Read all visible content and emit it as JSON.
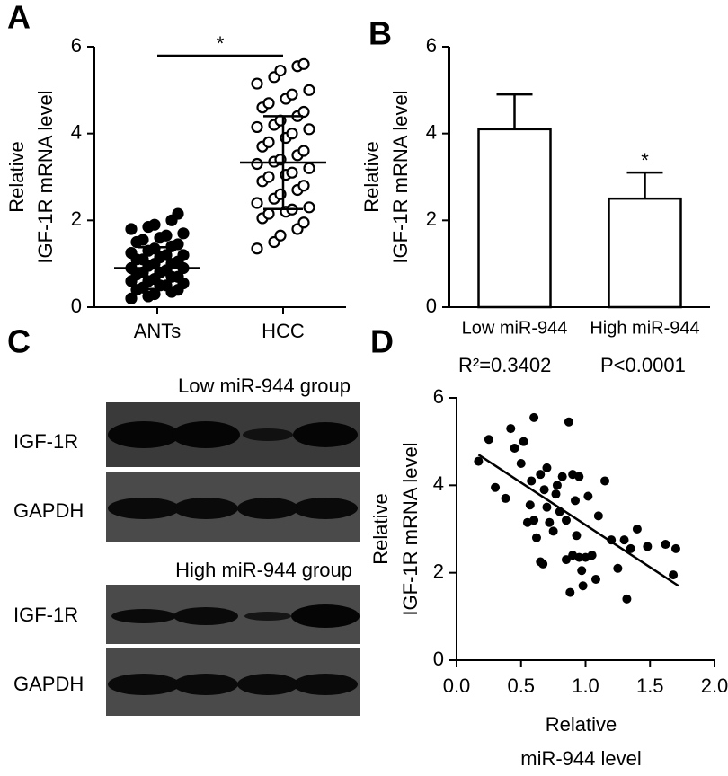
{
  "panel_labels": [
    "A",
    "B",
    "C",
    "D"
  ],
  "chart_data": [
    {
      "type": "dotplot",
      "ylabel": [
        "Relative",
        "IGF-1R mRNA level"
      ],
      "ylim": [
        0,
        6
      ],
      "yticks": [
        0,
        2,
        4,
        6
      ],
      "significance": "*",
      "groups": [
        {
          "name": "ANTs",
          "mean": 0.9,
          "sd": 0.48,
          "values": [
            0.2,
            0.25,
            0.3,
            0.35,
            0.4,
            0.4,
            0.45,
            0.5,
            0.5,
            0.55,
            0.6,
            0.6,
            0.65,
            0.7,
            0.7,
            0.75,
            0.8,
            0.8,
            0.85,
            0.9,
            0.9,
            0.95,
            1.0,
            1.0,
            1.05,
            1.1,
            1.1,
            1.15,
            1.2,
            1.2,
            1.25,
            1.3,
            1.35,
            1.4,
            1.45,
            1.5,
            1.55,
            1.6,
            1.65,
            1.7,
            1.8,
            1.85,
            1.9,
            2.0,
            2.15
          ]
        },
        {
          "name": "HCC",
          "mean": 3.33,
          "sd": 1.07,
          "values": [
            1.35,
            1.5,
            1.65,
            1.8,
            1.95,
            2.05,
            2.15,
            2.2,
            2.25,
            2.3,
            2.4,
            2.5,
            2.6,
            2.7,
            2.8,
            2.9,
            3.0,
            3.05,
            3.1,
            3.2,
            3.3,
            3.35,
            3.4,
            3.5,
            3.6,
            3.7,
            3.8,
            3.9,
            4.0,
            4.1,
            4.15,
            4.2,
            4.3,
            4.4,
            4.5,
            4.6,
            4.7,
            4.8,
            4.9,
            5.0,
            5.15,
            5.3,
            5.45,
            5.55,
            5.6
          ]
        }
      ]
    },
    {
      "type": "bar",
      "ylabel": [
        "Relative",
        "IGF-1R mRNA level"
      ],
      "ylim": [
        0,
        6
      ],
      "yticks": [
        0,
        2,
        4,
        6
      ],
      "categories": [
        "Low miR-944",
        "High miR-944"
      ],
      "values": [
        4.1,
        2.5
      ],
      "errors": [
        0.8,
        0.6
      ],
      "significance": "*"
    },
    {
      "type": "scatter",
      "ylabel": [
        "Relative",
        "IGF-1R mRNA level"
      ],
      "xlabel": [
        "Relative",
        "miR-944 level"
      ],
      "annotations": [
        "R²=0.3402",
        "P<0.0001"
      ],
      "xlim": [
        0,
        2
      ],
      "ylim": [
        0,
        6
      ],
      "xticks": [
        {
          "value": 0,
          "label": "0.0"
        },
        0.5,
        {
          "value": 1,
          "label": "1.0"
        },
        1.5,
        {
          "value": 2,
          "label": "2.0"
        }
      ],
      "yticks": [
        0,
        2,
        4,
        6
      ],
      "x": [
        0.17,
        0.25,
        0.3,
        0.38,
        0.42,
        0.45,
        0.5,
        0.52,
        0.55,
        0.57,
        0.58,
        0.6,
        0.6,
        0.62,
        0.65,
        0.65,
        0.67,
        0.68,
        0.7,
        0.7,
        0.72,
        0.75,
        0.77,
        0.78,
        0.8,
        0.82,
        0.85,
        0.85,
        0.87,
        0.88,
        0.9,
        0.9,
        0.92,
        0.93,
        0.95,
        0.95,
        0.97,
        0.98,
        1.0,
        1.02,
        1.05,
        1.08,
        1.1,
        1.15,
        1.2,
        1.25,
        1.3,
        1.32,
        1.35,
        1.4,
        1.48,
        1.62,
        1.68,
        1.7
      ],
      "y": [
        4.55,
        5.05,
        3.95,
        3.7,
        5.3,
        4.85,
        4.5,
        5.0,
        3.15,
        3.55,
        4.1,
        5.55,
        3.2,
        2.8,
        4.25,
        2.25,
        2.2,
        3.9,
        4.4,
        3.5,
        3.15,
        2.95,
        3.8,
        4.0,
        3.4,
        4.2,
        2.3,
        3.2,
        5.45,
        1.55,
        4.25,
        2.4,
        3.65,
        2.85,
        2.35,
        4.2,
        2.05,
        1.7,
        2.35,
        3.75,
        2.4,
        1.85,
        3.3,
        4.1,
        2.75,
        2.1,
        2.75,
        1.4,
        2.55,
        3.0,
        2.6,
        2.65,
        1.95,
        2.55
      ],
      "fit": {
        "x": [
          0.17,
          1.72
        ],
        "y": [
          4.7,
          1.7
        ]
      }
    }
  ],
  "blot": {
    "groups": [
      {
        "title": "Low miR-944 group",
        "rows": [
          "IGF-1R",
          "GAPDH"
        ]
      },
      {
        "title": "High miR-944 group",
        "rows": [
          "IGF-1R",
          "GAPDH"
        ]
      }
    ]
  }
}
